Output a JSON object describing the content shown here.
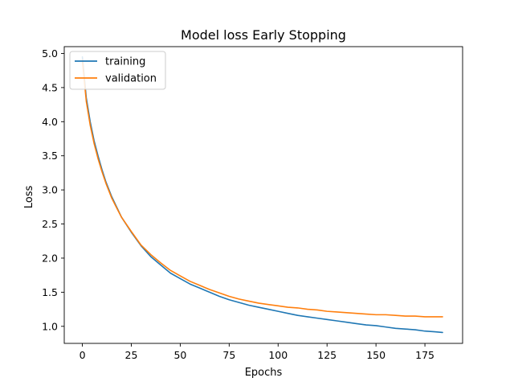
{
  "chart_data": {
    "type": "line",
    "title": "Model loss Early Stopping",
    "xlabel": "Epochs",
    "ylabel": "Loss",
    "xlim": [
      -9.25,
      194.25
    ],
    "ylim": [
      0.75,
      5.1
    ],
    "xticks": [
      0,
      25,
      50,
      75,
      100,
      125,
      150,
      175
    ],
    "yticks": [
      1.0,
      1.5,
      2.0,
      2.5,
      3.0,
      3.5,
      4.0,
      4.5,
      5.0
    ],
    "xtick_labels": [
      "0",
      "25",
      "50",
      "75",
      "100",
      "125",
      "150",
      "175"
    ],
    "ytick_labels": [
      "1.0",
      "1.5",
      "2.0",
      "2.5",
      "3.0",
      "3.5",
      "4.0",
      "4.5",
      "5.0"
    ],
    "grid": false,
    "legend": {
      "position": "top-left"
    },
    "series": [
      {
        "name": "training",
        "color": "#1f77b4",
        "x": [
          0,
          2,
          4,
          6,
          8,
          10,
          12,
          15,
          18,
          20,
          25,
          30,
          35,
          40,
          45,
          50,
          55,
          60,
          65,
          70,
          75,
          80,
          85,
          90,
          95,
          100,
          105,
          110,
          115,
          120,
          125,
          130,
          135,
          140,
          145,
          150,
          155,
          160,
          165,
          170,
          175,
          180,
          184
        ],
        "y": [
          4.95,
          4.35,
          4.0,
          3.72,
          3.5,
          3.3,
          3.12,
          2.9,
          2.72,
          2.6,
          2.38,
          2.18,
          2.02,
          1.9,
          1.78,
          1.7,
          1.62,
          1.56,
          1.5,
          1.44,
          1.39,
          1.35,
          1.31,
          1.28,
          1.25,
          1.22,
          1.19,
          1.16,
          1.14,
          1.12,
          1.1,
          1.08,
          1.06,
          1.04,
          1.02,
          1.01,
          0.99,
          0.97,
          0.96,
          0.95,
          0.93,
          0.92,
          0.91
        ]
      },
      {
        "name": "validation",
        "color": "#ff7f0e",
        "x": [
          0,
          2,
          4,
          6,
          8,
          10,
          12,
          15,
          18,
          20,
          25,
          30,
          35,
          40,
          45,
          50,
          55,
          60,
          65,
          70,
          75,
          80,
          85,
          90,
          95,
          100,
          105,
          110,
          115,
          120,
          125,
          130,
          135,
          140,
          145,
          150,
          155,
          160,
          165,
          170,
          175,
          180,
          184
        ],
        "y": [
          4.9,
          4.3,
          3.95,
          3.68,
          3.46,
          3.27,
          3.1,
          2.88,
          2.71,
          2.6,
          2.39,
          2.19,
          2.05,
          1.93,
          1.82,
          1.74,
          1.66,
          1.6,
          1.54,
          1.49,
          1.44,
          1.4,
          1.37,
          1.34,
          1.32,
          1.3,
          1.28,
          1.27,
          1.25,
          1.24,
          1.22,
          1.21,
          1.2,
          1.19,
          1.18,
          1.17,
          1.17,
          1.16,
          1.15,
          1.15,
          1.14,
          1.14,
          1.14
        ]
      }
    ]
  }
}
